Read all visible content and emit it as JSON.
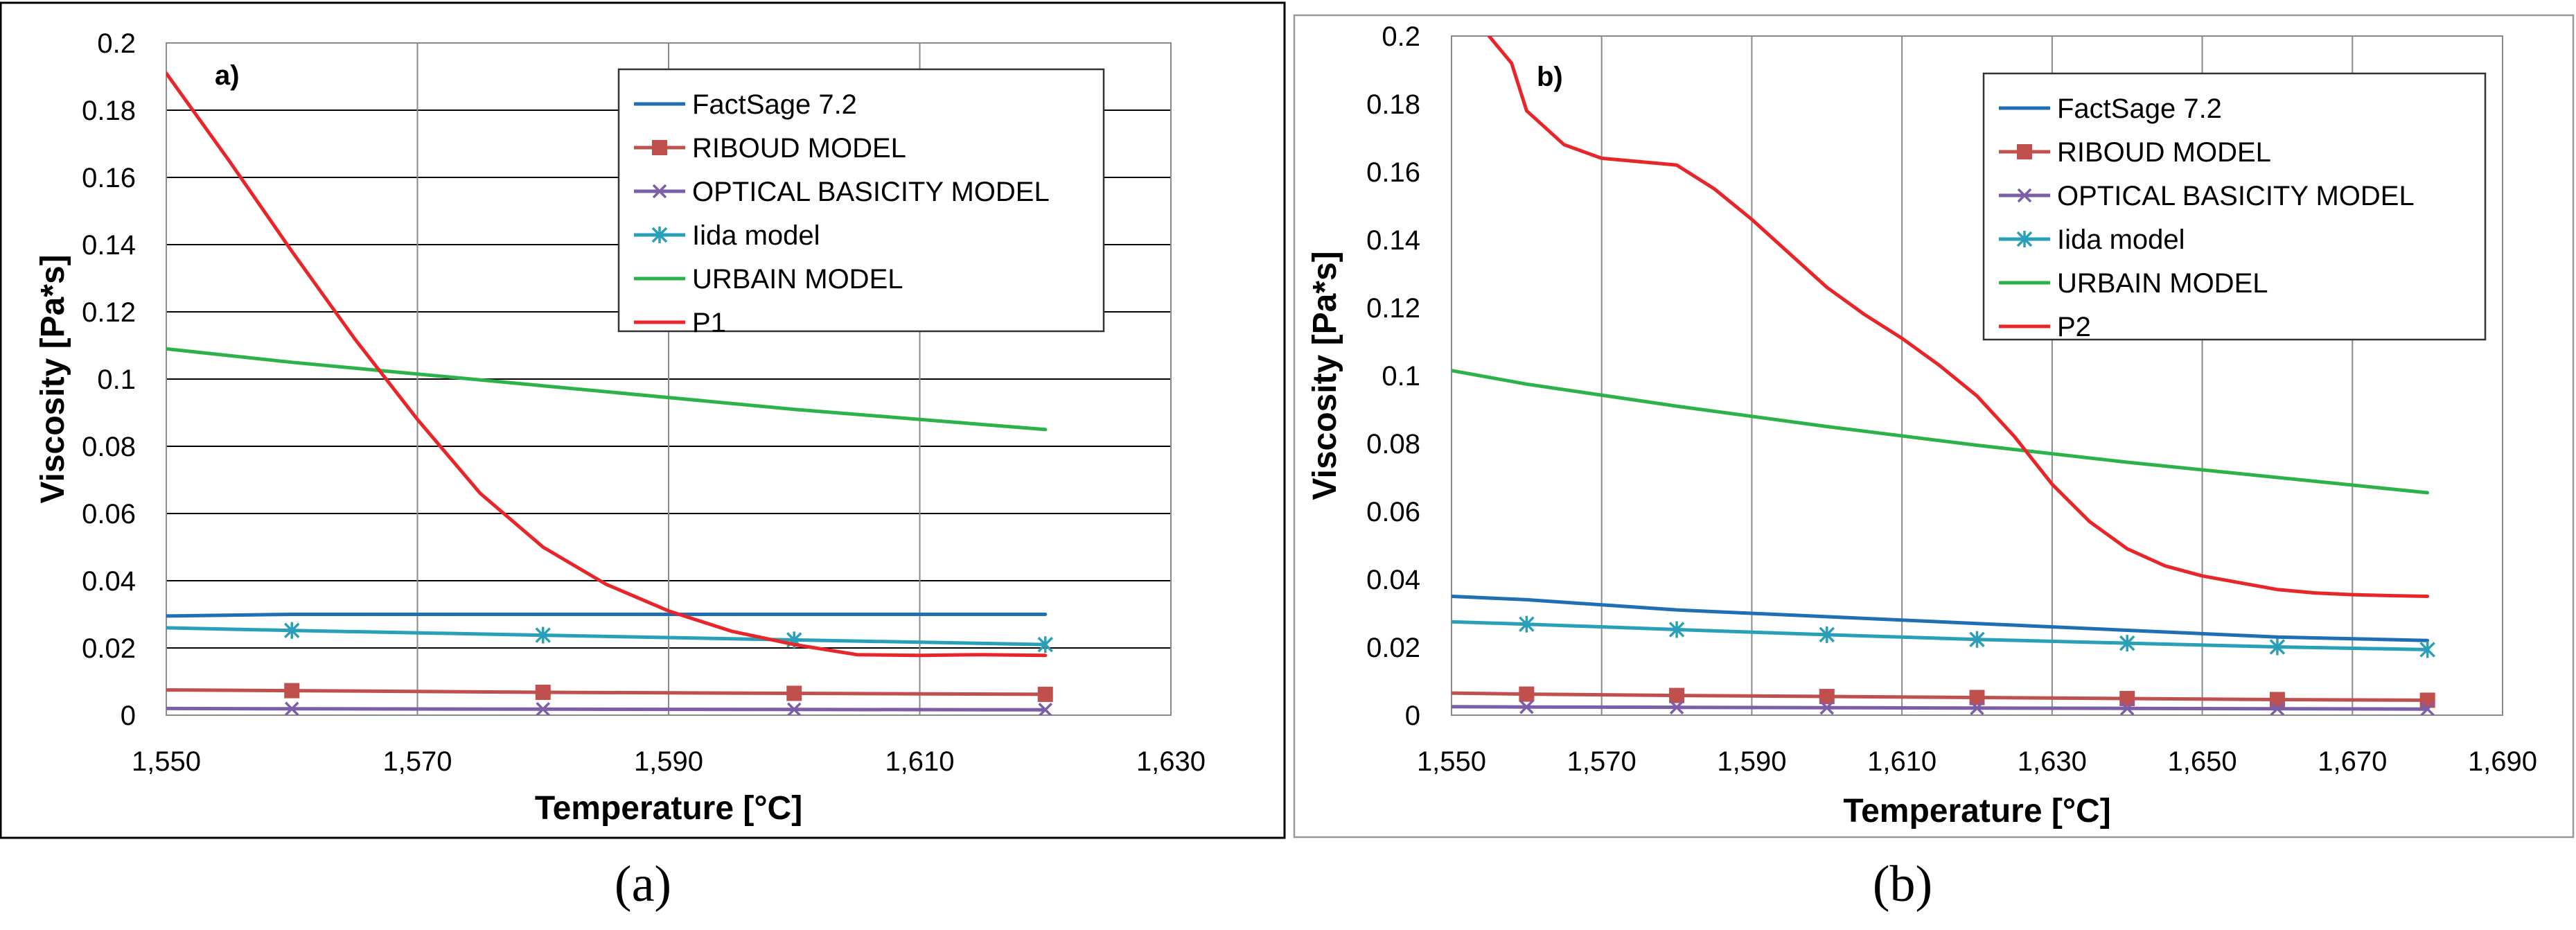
{
  "chart_data": [
    {
      "type": "line",
      "panel_label": "a)",
      "caption": "(a)",
      "xlabel": "Temperature [°C]",
      "ylabel": "Viscosity [Pa*s]",
      "xlim": [
        1550,
        1630
      ],
      "ylim": [
        0,
        0.2
      ],
      "x_ticks": [
        1550,
        1570,
        1590,
        1610,
        1630
      ],
      "x_tick_labels": [
        "1,550",
        "1,570",
        "1,590",
        "1,610",
        "1,630"
      ],
      "y_ticks": [
        0,
        0.02,
        0.04,
        0.06,
        0.08,
        0.1,
        0.12,
        0.14,
        0.16,
        0.18,
        0.2
      ],
      "y_tick_labels": [
        "0",
        "0.02",
        "0.04",
        "0.06",
        "0.08",
        "0.1",
        "0.12",
        "0.14",
        "0.16",
        "0.18",
        "0.2"
      ],
      "legend_position": "top-right",
      "grid": "horizontal and vertical",
      "series": [
        {
          "name": "FactSage 7.2",
          "color": "#1f6fb4",
          "marker": "none",
          "x": [
            1550,
            1560,
            1580,
            1600,
            1620
          ],
          "y": [
            0.0295,
            0.03,
            0.03,
            0.03,
            0.03
          ]
        },
        {
          "name": "RIBOUD MODEL",
          "color": "#c0504d",
          "marker": "square",
          "x": [
            1550,
            1560,
            1580,
            1600,
            1620
          ],
          "y": [
            0.0075,
            0.0073,
            0.0068,
            0.0065,
            0.0062
          ]
        },
        {
          "name": "OPTICAL BASICITY MODEL",
          "color": "#7b5ea7",
          "marker": "x",
          "x": [
            1550,
            1560,
            1580,
            1600,
            1620
          ],
          "y": [
            0.002,
            0.0019,
            0.0018,
            0.0017,
            0.0016
          ]
        },
        {
          "name": "Iida model",
          "color": "#2aa0b8",
          "marker": "star",
          "x": [
            1550,
            1560,
            1580,
            1600,
            1620
          ],
          "y": [
            0.026,
            0.0252,
            0.0238,
            0.0224,
            0.021
          ]
        },
        {
          "name": "URBAIN MODEL",
          "color": "#2bb34a",
          "marker": "none",
          "x": [
            1550,
            1560,
            1580,
            1600,
            1620
          ],
          "y": [
            0.109,
            0.105,
            0.098,
            0.091,
            0.085
          ]
        },
        {
          "name": "P1",
          "color": "#e8262a",
          "marker": "none",
          "x": [
            1550,
            1555,
            1560,
            1565,
            1570,
            1575,
            1580,
            1585,
            1590,
            1595,
            1600,
            1605,
            1610,
            1615,
            1620
          ],
          "y": [
            0.191,
            0.165,
            0.138,
            0.112,
            0.088,
            0.066,
            0.05,
            0.039,
            0.031,
            0.025,
            0.021,
            0.018,
            0.0178,
            0.018,
            0.0178
          ]
        }
      ]
    },
    {
      "type": "line",
      "panel_label": "b)",
      "caption": "(b)",
      "xlabel": "Temperature [°C]",
      "ylabel": "Viscosity [Pa*s]",
      "xlim": [
        1550,
        1690
      ],
      "ylim": [
        0,
        0.2
      ],
      "x_ticks": [
        1550,
        1570,
        1590,
        1610,
        1630,
        1650,
        1670,
        1690
      ],
      "x_tick_labels": [
        "1,550",
        "1,570",
        "1,590",
        "1,610",
        "1,630",
        "1,650",
        "1,670",
        "1,690"
      ],
      "y_ticks": [
        0,
        0.02,
        0.04,
        0.06,
        0.08,
        0.1,
        0.12,
        0.14,
        0.16,
        0.18,
        0.2
      ],
      "y_tick_labels": [
        "0",
        "0.02",
        "0.04",
        "0.06",
        "0.08",
        "0.1",
        "0.12",
        "0.14",
        "0.16",
        "0.18",
        "0.2"
      ],
      "legend_position": "top-right",
      "grid": "vertical only",
      "series": [
        {
          "name": "FactSage 7.2",
          "color": "#1f6fb4",
          "marker": "none",
          "x": [
            1550,
            1560,
            1580,
            1600,
            1620,
            1640,
            1660,
            1680
          ],
          "y": [
            0.035,
            0.034,
            0.031,
            0.029,
            0.027,
            0.025,
            0.023,
            0.022
          ]
        },
        {
          "name": "RIBOUD MODEL",
          "color": "#c0504d",
          "marker": "square",
          "x": [
            1550,
            1560,
            1580,
            1600,
            1620,
            1640,
            1660,
            1680
          ],
          "y": [
            0.0065,
            0.0062,
            0.0058,
            0.0055,
            0.0052,
            0.0049,
            0.0046,
            0.0044
          ]
        },
        {
          "name": "OPTICAL BASICITY MODEL",
          "color": "#7b5ea7",
          "marker": "x",
          "x": [
            1550,
            1560,
            1580,
            1600,
            1620,
            1640,
            1660,
            1680
          ],
          "y": [
            0.0025,
            0.0024,
            0.0023,
            0.0022,
            0.0021,
            0.002,
            0.0019,
            0.0018
          ]
        },
        {
          "name": "Iida model",
          "color": "#2aa0b8",
          "marker": "star",
          "x": [
            1550,
            1560,
            1580,
            1600,
            1620,
            1640,
            1660,
            1680
          ],
          "y": [
            0.0275,
            0.0268,
            0.0252,
            0.0237,
            0.0223,
            0.0212,
            0.0201,
            0.0193
          ]
        },
        {
          "name": "URBAIN MODEL",
          "color": "#2bb34a",
          "marker": "none",
          "x": [
            1550,
            1560,
            1580,
            1600,
            1620,
            1640,
            1660,
            1680
          ],
          "y": [
            0.1015,
            0.0975,
            0.091,
            0.085,
            0.0795,
            0.0745,
            0.07,
            0.0655
          ]
        },
        {
          "name": "P2",
          "color": "#e8262a",
          "marker": "none",
          "x": [
            1555,
            1558,
            1560,
            1565,
            1570,
            1575,
            1580,
            1585,
            1590,
            1595,
            1600,
            1605,
            1610,
            1615,
            1620,
            1625,
            1630,
            1635,
            1640,
            1645,
            1650,
            1655,
            1660,
            1665,
            1670,
            1675,
            1680
          ],
          "y": [
            0.2,
            0.192,
            0.178,
            0.168,
            0.164,
            0.163,
            0.162,
            0.155,
            0.146,
            0.136,
            0.126,
            0.118,
            0.111,
            0.103,
            0.094,
            0.082,
            0.068,
            0.057,
            0.049,
            0.044,
            0.041,
            0.039,
            0.037,
            0.036,
            0.0355,
            0.0352,
            0.035
          ]
        }
      ]
    }
  ]
}
